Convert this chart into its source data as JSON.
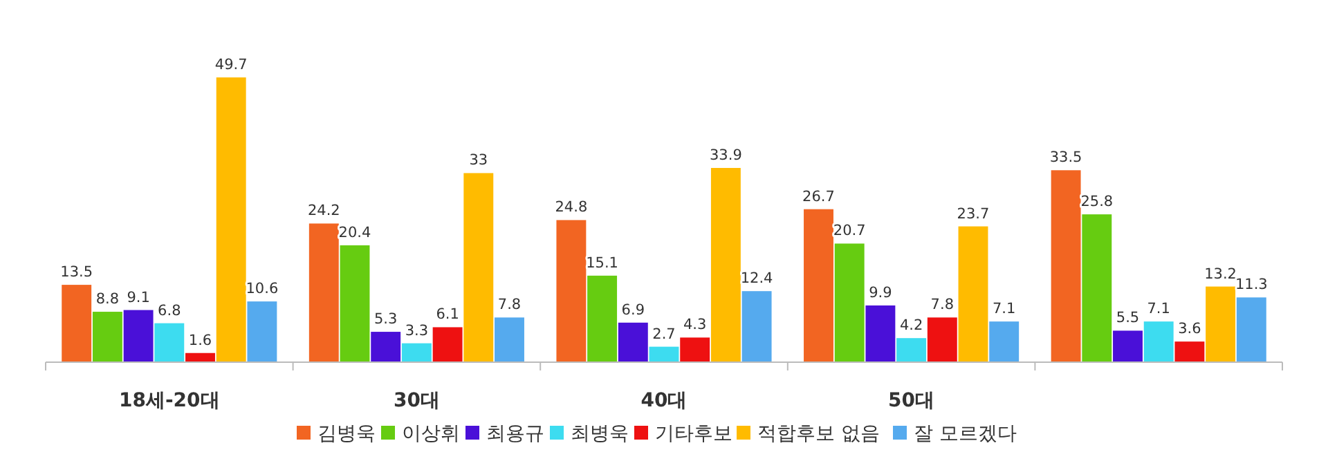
{
  "chart_data": {
    "type": "bar",
    "categories": [
      "18세-20대",
      "30대",
      "40대",
      "50대",
      null
    ],
    "data_labels": true,
    "legend": "bottom",
    "series": [
      {
        "name": "김병욱",
        "color": "#f26522",
        "values": [
          13.5,
          24.2,
          24.8,
          26.7,
          33.5
        ]
      },
      {
        "name": "이상휘",
        "color": "#66cc11",
        "values": [
          8.8,
          20.4,
          15.1,
          20.7,
          25.8
        ]
      },
      {
        "name": "최용규",
        "color": "#4a10d8",
        "values": [
          9.1,
          5.3,
          6.9,
          9.9,
          5.5
        ]
      },
      {
        "name": "최병욱",
        "color": "#3ddcf0",
        "values": [
          6.8,
          3.3,
          2.7,
          4.2,
          7.1
        ]
      },
      {
        "name": "기타후보",
        "color": "#ee1111",
        "values": [
          1.6,
          6.1,
          4.3,
          7.8,
          3.6
        ]
      },
      {
        "name": "적합후보 없음",
        "color": "#ffbb00",
        "values": [
          49.7,
          33,
          33.9,
          23.7,
          13.2
        ]
      },
      {
        "name": "잘 모르겠다",
        "color": "#55aaee",
        "values": [
          10.6,
          7.8,
          12.4,
          7.1,
          11.3
        ]
      }
    ]
  }
}
